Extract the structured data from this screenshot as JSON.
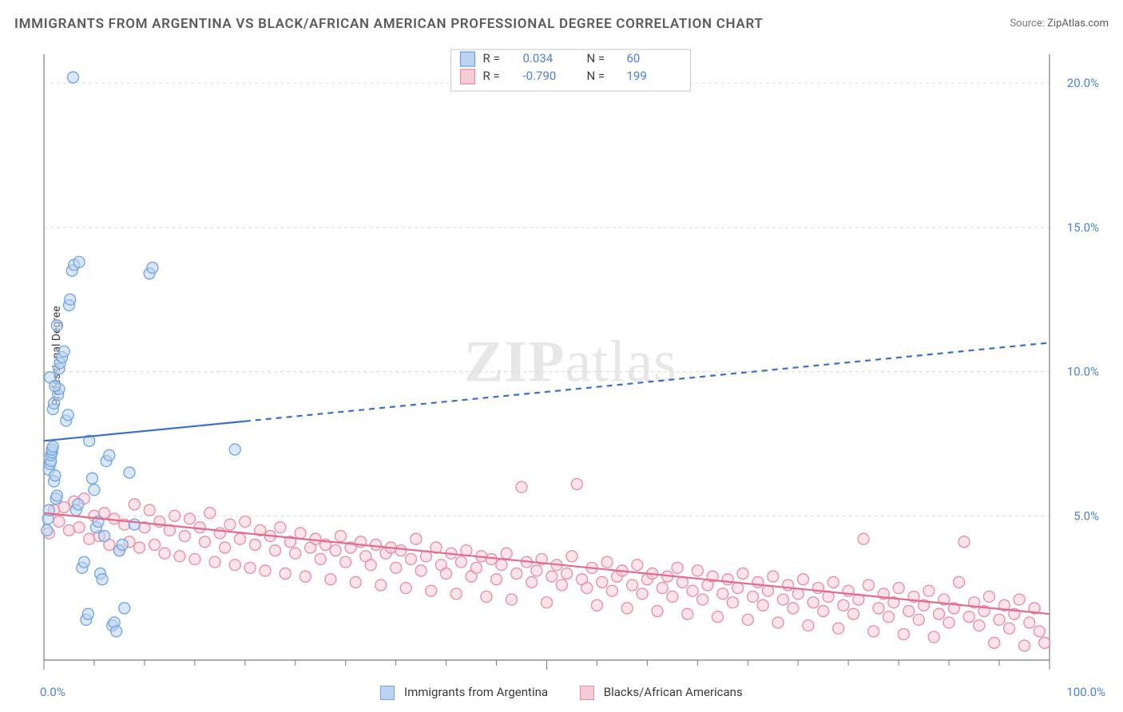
{
  "title": "IMMIGRANTS FROM ARGENTINA VS BLACK/AFRICAN AMERICAN PROFESSIONAL DEGREE CORRELATION CHART",
  "source_label": "Source:",
  "source_value": "ZipAtlas.com",
  "watermark": {
    "part1": "ZIP",
    "part2": "atlas"
  },
  "ylabel": "Professional Degree",
  "xaxis": {
    "min": 0,
    "max": 100,
    "start_label": "0.0%",
    "end_label": "100.0%",
    "ticks": [
      0,
      5,
      10,
      15,
      20,
      25,
      30,
      35,
      40,
      45,
      50,
      55,
      60,
      65,
      70,
      75,
      80,
      85,
      90,
      95,
      100
    ],
    "major_ticks": [
      0,
      50,
      100
    ]
  },
  "yaxis": {
    "min": 0,
    "max": 21,
    "ticks": [
      {
        "v": 5,
        "label": "5.0%"
      },
      {
        "v": 10,
        "label": "10.0%"
      },
      {
        "v": 15,
        "label": "15.0%"
      },
      {
        "v": 20,
        "label": "20.0%"
      }
    ]
  },
  "series": [
    {
      "id": "argentina",
      "label": "Immigrants from Argentina",
      "color_fill": "#bcd4f0",
      "color_stroke": "#6fa3e0",
      "marker_r": 7,
      "r_value": "0.034",
      "n_value": "60",
      "trend": {
        "y0": 7.6,
        "y100": 11.0,
        "solid_until_x": 20,
        "stroke": "#3b6fc9",
        "width": 2.2
      },
      "points": [
        [
          0.3,
          4.5
        ],
        [
          0.4,
          4.9
        ],
        [
          0.5,
          5.2
        ],
        [
          0.5,
          6.6
        ],
        [
          0.6,
          6.8
        ],
        [
          0.7,
          6.9
        ],
        [
          0.7,
          7.1
        ],
        [
          0.8,
          7.2
        ],
        [
          0.8,
          7.3
        ],
        [
          0.9,
          7.4
        ],
        [
          0.9,
          8.7
        ],
        [
          1.0,
          8.9
        ],
        [
          1.0,
          6.2
        ],
        [
          1.1,
          6.4
        ],
        [
          1.2,
          5.6
        ],
        [
          1.3,
          5.7
        ],
        [
          1.4,
          9.2
        ],
        [
          1.5,
          9.4
        ],
        [
          1.5,
          10.1
        ],
        [
          1.6,
          10.3
        ],
        [
          1.8,
          10.5
        ],
        [
          2.0,
          10.7
        ],
        [
          2.2,
          8.3
        ],
        [
          2.4,
          8.5
        ],
        [
          2.5,
          12.3
        ],
        [
          2.6,
          12.5
        ],
        [
          2.8,
          13.5
        ],
        [
          3.0,
          13.7
        ],
        [
          3.2,
          5.2
        ],
        [
          3.4,
          5.4
        ],
        [
          3.8,
          3.2
        ],
        [
          4.0,
          3.4
        ],
        [
          4.2,
          1.4
        ],
        [
          4.4,
          1.6
        ],
        [
          4.5,
          7.6
        ],
        [
          4.8,
          6.3
        ],
        [
          5.0,
          5.9
        ],
        [
          5.2,
          4.6
        ],
        [
          5.4,
          4.8
        ],
        [
          5.6,
          3.0
        ],
        [
          5.8,
          2.8
        ],
        [
          6.0,
          4.3
        ],
        [
          6.2,
          6.9
        ],
        [
          6.5,
          7.1
        ],
        [
          6.8,
          1.2
        ],
        [
          7.0,
          1.3
        ],
        [
          7.2,
          1.0
        ],
        [
          7.5,
          3.8
        ],
        [
          7.8,
          4.0
        ],
        [
          8.0,
          1.8
        ],
        [
          8.5,
          6.5
        ],
        [
          9.0,
          4.7
        ],
        [
          10.5,
          13.4
        ],
        [
          10.8,
          13.6
        ],
        [
          3.5,
          13.8
        ],
        [
          2.9,
          20.2
        ],
        [
          19.0,
          7.3
        ],
        [
          0.6,
          9.8
        ],
        [
          1.1,
          9.5
        ],
        [
          1.3,
          11.6
        ]
      ]
    },
    {
      "id": "black",
      "label": "Blacks/African Americans",
      "color_fill": "#f6cdd7",
      "color_stroke": "#e88ba3",
      "marker_r": 7,
      "r_value": "-0.790",
      "n_value": "199",
      "trend": {
        "y0": 5.1,
        "y100": 1.6,
        "solid_until_x": 100,
        "stroke": "#e36a8a",
        "width": 2.2
      },
      "points": [
        [
          0.5,
          4.4
        ],
        [
          1,
          5.2
        ],
        [
          1.5,
          4.8
        ],
        [
          2,
          5.3
        ],
        [
          2.5,
          4.5
        ],
        [
          3,
          5.5
        ],
        [
          3.5,
          4.6
        ],
        [
          4,
          5.6
        ],
        [
          4.5,
          4.2
        ],
        [
          5,
          5.0
        ],
        [
          5.5,
          4.3
        ],
        [
          6,
          5.1
        ],
        [
          6.5,
          4.0
        ],
        [
          7,
          4.9
        ],
        [
          7.5,
          3.8
        ],
        [
          8,
          4.7
        ],
        [
          8.5,
          4.1
        ],
        [
          9,
          5.4
        ],
        [
          9.5,
          3.9
        ],
        [
          10,
          4.6
        ],
        [
          10.5,
          5.2
        ],
        [
          11,
          4.0
        ],
        [
          11.5,
          4.8
        ],
        [
          12,
          3.7
        ],
        [
          12.5,
          4.5
        ],
        [
          13,
          5.0
        ],
        [
          13.5,
          3.6
        ],
        [
          14,
          4.3
        ],
        [
          14.5,
          4.9
        ],
        [
          15,
          3.5
        ],
        [
          15.5,
          4.6
        ],
        [
          16,
          4.1
        ],
        [
          16.5,
          5.1
        ],
        [
          17,
          3.4
        ],
        [
          17.5,
          4.4
        ],
        [
          18,
          3.9
        ],
        [
          18.5,
          4.7
        ],
        [
          19,
          3.3
        ],
        [
          19.5,
          4.2
        ],
        [
          20,
          4.8
        ],
        [
          20.5,
          3.2
        ],
        [
          21,
          4.0
        ],
        [
          21.5,
          4.5
        ],
        [
          22,
          3.1
        ],
        [
          22.5,
          4.3
        ],
        [
          23,
          3.8
        ],
        [
          23.5,
          4.6
        ],
        [
          24,
          3.0
        ],
        [
          24.5,
          4.1
        ],
        [
          25,
          3.7
        ],
        [
          25.5,
          4.4
        ],
        [
          26,
          2.9
        ],
        [
          26.5,
          3.9
        ],
        [
          27,
          4.2
        ],
        [
          27.5,
          3.5
        ],
        [
          28,
          4.0
        ],
        [
          28.5,
          2.8
        ],
        [
          29,
          3.8
        ],
        [
          29.5,
          4.3
        ],
        [
          30,
          3.4
        ],
        [
          30.5,
          3.9
        ],
        [
          31,
          2.7
        ],
        [
          31.5,
          4.1
        ],
        [
          32,
          3.6
        ],
        [
          32.5,
          3.3
        ],
        [
          33,
          4.0
        ],
        [
          33.5,
          2.6
        ],
        [
          34,
          3.7
        ],
        [
          34.5,
          3.9
        ],
        [
          35,
          3.2
        ],
        [
          35.5,
          3.8
        ],
        [
          36,
          2.5
        ],
        [
          36.5,
          3.5
        ],
        [
          37,
          4.2
        ],
        [
          37.5,
          3.1
        ],
        [
          38,
          3.6
        ],
        [
          38.5,
          2.4
        ],
        [
          39,
          3.9
        ],
        [
          39.5,
          3.3
        ],
        [
          40,
          3.0
        ],
        [
          40.5,
          3.7
        ],
        [
          41,
          2.3
        ],
        [
          41.5,
          3.4
        ],
        [
          42,
          3.8
        ],
        [
          42.5,
          2.9
        ],
        [
          43,
          3.2
        ],
        [
          43.5,
          3.6
        ],
        [
          44,
          2.2
        ],
        [
          44.5,
          3.5
        ],
        [
          45,
          2.8
        ],
        [
          45.5,
          3.3
        ],
        [
          46,
          3.7
        ],
        [
          46.5,
          2.1
        ],
        [
          47,
          3.0
        ],
        [
          47.5,
          6.0
        ],
        [
          48,
          3.4
        ],
        [
          48.5,
          2.7
        ],
        [
          49,
          3.1
        ],
        [
          49.5,
          3.5
        ],
        [
          50,
          2.0
        ],
        [
          50.5,
          2.9
        ],
        [
          51,
          3.3
        ],
        [
          51.5,
          2.6
        ],
        [
          52,
          3.0
        ],
        [
          52.5,
          3.6
        ],
        [
          53,
          6.1
        ],
        [
          53.5,
          2.8
        ],
        [
          54,
          2.5
        ],
        [
          54.5,
          3.2
        ],
        [
          55,
          1.9
        ],
        [
          55.5,
          2.7
        ],
        [
          56,
          3.4
        ],
        [
          56.5,
          2.4
        ],
        [
          57,
          2.9
        ],
        [
          57.5,
          3.1
        ],
        [
          58,
          1.8
        ],
        [
          58.5,
          2.6
        ],
        [
          59,
          3.3
        ],
        [
          59.5,
          2.3
        ],
        [
          60,
          2.8
        ],
        [
          60.5,
          3.0
        ],
        [
          61,
          1.7
        ],
        [
          61.5,
          2.5
        ],
        [
          62,
          2.9
        ],
        [
          62.5,
          2.2
        ],
        [
          63,
          3.2
        ],
        [
          63.5,
          2.7
        ],
        [
          64,
          1.6
        ],
        [
          64.5,
          2.4
        ],
        [
          65,
          3.1
        ],
        [
          65.5,
          2.1
        ],
        [
          66,
          2.6
        ],
        [
          66.5,
          2.9
        ],
        [
          67,
          1.5
        ],
        [
          67.5,
          2.3
        ],
        [
          68,
          2.8
        ],
        [
          68.5,
          2.0
        ],
        [
          69,
          2.5
        ],
        [
          69.5,
          3.0
        ],
        [
          70,
          1.4
        ],
        [
          70.5,
          2.2
        ],
        [
          71,
          2.7
        ],
        [
          71.5,
          1.9
        ],
        [
          72,
          2.4
        ],
        [
          72.5,
          2.9
        ],
        [
          73,
          1.3
        ],
        [
          73.5,
          2.1
        ],
        [
          74,
          2.6
        ],
        [
          74.5,
          1.8
        ],
        [
          75,
          2.3
        ],
        [
          75.5,
          2.8
        ],
        [
          76,
          1.2
        ],
        [
          76.5,
          2.0
        ],
        [
          77,
          2.5
        ],
        [
          77.5,
          1.7
        ],
        [
          78,
          2.2
        ],
        [
          78.5,
          2.7
        ],
        [
          79,
          1.1
        ],
        [
          79.5,
          1.9
        ],
        [
          80,
          2.4
        ],
        [
          80.5,
          1.6
        ],
        [
          81,
          2.1
        ],
        [
          81.5,
          4.2
        ],
        [
          82,
          2.6
        ],
        [
          82.5,
          1.0
        ],
        [
          83,
          1.8
        ],
        [
          83.5,
          2.3
        ],
        [
          84,
          1.5
        ],
        [
          84.5,
          2.0
        ],
        [
          85,
          2.5
        ],
        [
          85.5,
          0.9
        ],
        [
          86,
          1.7
        ],
        [
          86.5,
          2.2
        ],
        [
          87,
          1.4
        ],
        [
          87.5,
          1.9
        ],
        [
          88,
          2.4
        ],
        [
          88.5,
          0.8
        ],
        [
          89,
          1.6
        ],
        [
          89.5,
          2.1
        ],
        [
          90,
          1.3
        ],
        [
          90.5,
          1.8
        ],
        [
          91,
          2.7
        ],
        [
          91.5,
          4.1
        ],
        [
          92,
          1.5
        ],
        [
          92.5,
          2.0
        ],
        [
          93,
          1.2
        ],
        [
          93.5,
          1.7
        ],
        [
          94,
          2.2
        ],
        [
          94.5,
          0.6
        ],
        [
          95,
          1.4
        ],
        [
          95.5,
          1.9
        ],
        [
          96,
          1.1
        ],
        [
          96.5,
          1.6
        ],
        [
          97,
          2.1
        ],
        [
          97.5,
          0.5
        ],
        [
          98,
          1.3
        ],
        [
          98.5,
          1.8
        ],
        [
          99,
          1.0
        ],
        [
          99.5,
          0.6
        ]
      ]
    }
  ],
  "top_legend": {
    "r_label": "R  =",
    "n_label": "N  =",
    "value_color": "#4a80d6",
    "text_color": "#3a3a3a"
  },
  "bottom_legend": {
    "items": [
      {
        "label": "Immigrants from Argentina",
        "fill": "#bcd4f0",
        "stroke": "#6fa3e0"
      },
      {
        "label": "Blacks/African Americans",
        "fill": "#f6cdd7",
        "stroke": "#e88ba3"
      }
    ]
  }
}
